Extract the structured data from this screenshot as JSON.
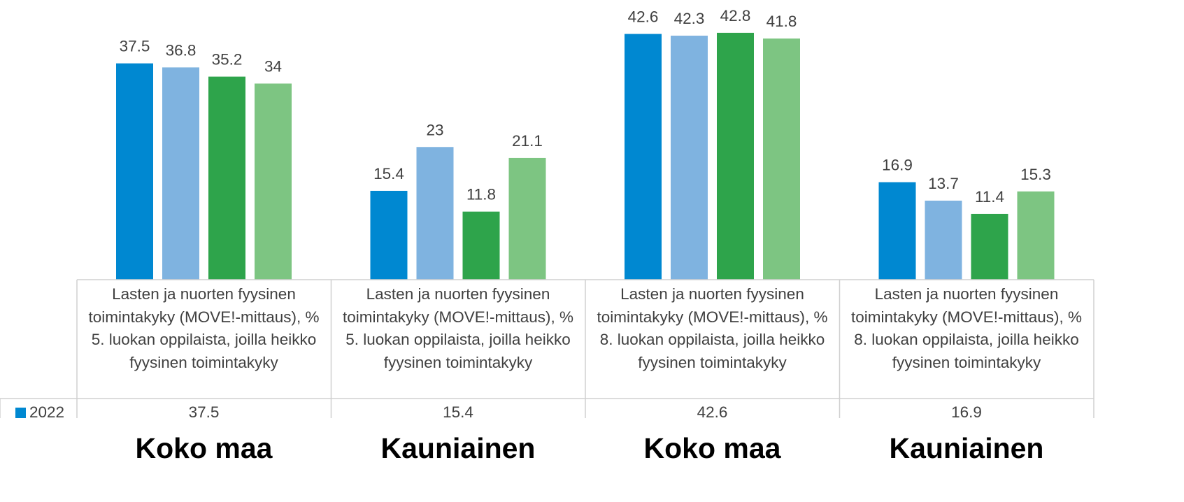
{
  "chart_data": {
    "type": "bar",
    "categories": [
      "Lasten ja nuorten fyysinen toimintakyky (MOVE!-mittaus), % 5. luokan oppilaista, joilla heikko fyysinen toimintakyky",
      "Lasten ja nuorten fyysinen toimintakyky (MOVE!-mittaus), % 5. luokan oppilaista, joilla heikko fyysinen toimintakyky",
      "Lasten ja nuorten fyysinen toimintakyky (MOVE!-mittaus), % 8. luokan oppilaista, joilla heikko fyysinen toimintakyky",
      "Lasten ja nuorten fyysinen toimintakyky (MOVE!-mittaus), % 8. luokan oppilaista, joilla heikko fyysinen toimintakyky"
    ],
    "group_labels": [
      "Koko maa",
      "Kauniainen",
      "Koko maa",
      "Kauniainen"
    ],
    "series": [
      {
        "name": "2022",
        "color": "#0088d1",
        "values": [
          37.5,
          15.4,
          42.6,
          16.9
        ]
      },
      {
        "color": "#7fb3e0",
        "values": [
          36.8,
          23,
          42.3,
          13.7
        ]
      },
      {
        "color": "#2ea44b",
        "values": [
          35.2,
          11.8,
          42.8,
          11.4
        ]
      },
      {
        "color": "#7dc582",
        "values": [
          34,
          21.1,
          41.8,
          15.3
        ]
      }
    ]
  }
}
